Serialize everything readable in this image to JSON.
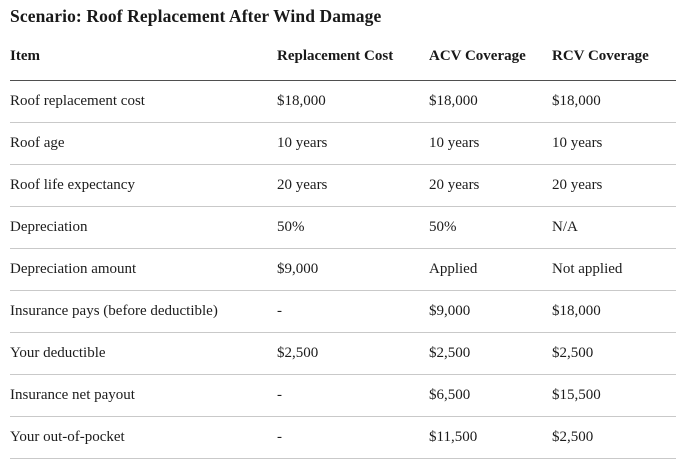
{
  "title": "Scenario: Roof Replacement After Wind Damage",
  "table": {
    "columns": [
      "Item",
      "Replacement Cost",
      "ACV Coverage",
      "RCV Coverage"
    ],
    "rows": [
      [
        "Roof replacement cost",
        "$18,000",
        "$18,000",
        "$18,000"
      ],
      [
        "Roof age",
        "10 years",
        "10 years",
        "10 years"
      ],
      [
        "Roof life expectancy",
        "20 years",
        "20 years",
        "20 years"
      ],
      [
        "Depreciation",
        "50%",
        "50%",
        "N/A"
      ],
      [
        "Depreciation amount",
        "$9,000",
        "Applied",
        "Not applied"
      ],
      [
        "Insurance pays (before deductible)",
        "-",
        "$9,000",
        "$18,000"
      ],
      [
        "Your deductible",
        "$2,500",
        "$2,500",
        "$2,500"
      ],
      [
        "Insurance net payout",
        "-",
        "$6,500",
        "$15,500"
      ],
      [
        "Your out-of-pocket",
        "-",
        "$11,500",
        "$2,500"
      ]
    ]
  },
  "colors": {
    "text": "#1c1c1c",
    "header_rule": "#4f4f4f",
    "row_rule": "#c9c9c9",
    "background": "#ffffff"
  }
}
